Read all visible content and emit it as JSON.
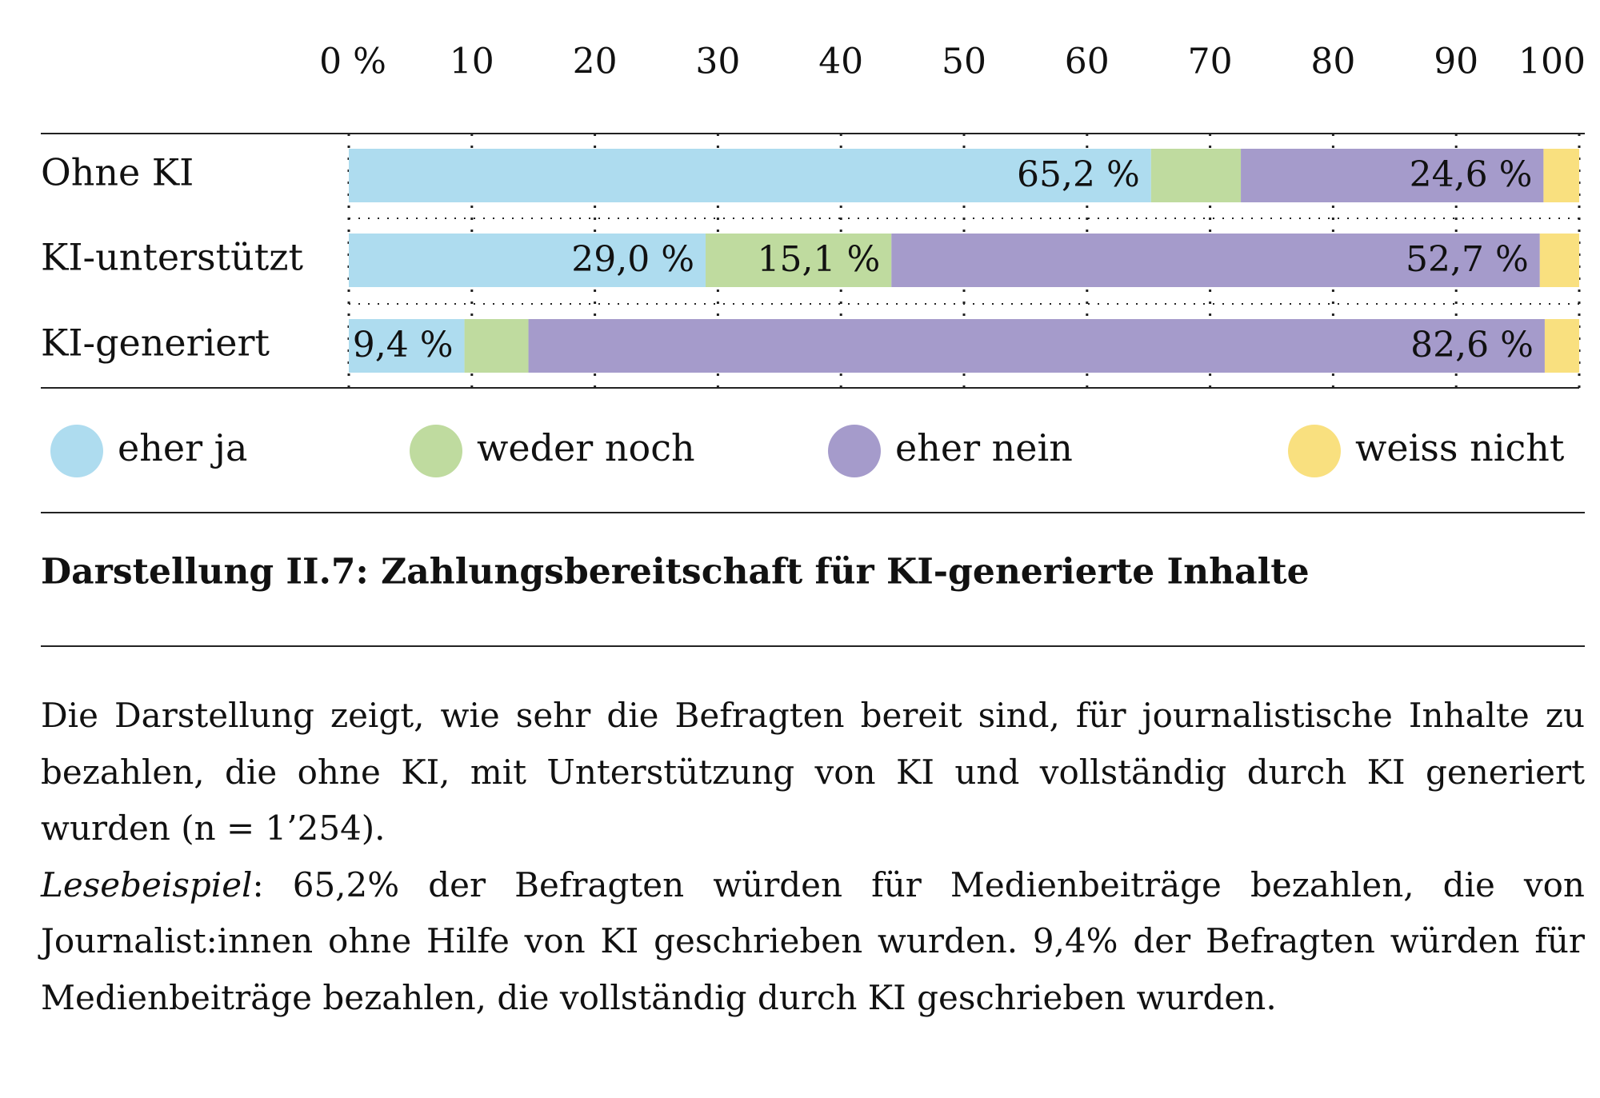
{
  "chart_data": {
    "type": "bar",
    "orientation": "horizontal",
    "stacked": true,
    "title": "Darstellung II.7: Zahlungsbereitschaft für KI-generierte Inhalte",
    "categories": [
      "Ohne KI",
      "KI-unterstützt",
      "KI-generiert"
    ],
    "series": [
      {
        "name": "eher ja",
        "color": "#aedcef",
        "values": [
          65.2,
          29.0,
          9.4
        ],
        "value_labels": [
          "65,2 %",
          "29,0 %",
          "9,4 %"
        ]
      },
      {
        "name": "weder noch",
        "color": "#bfdb9f",
        "values": [
          7.3,
          15.1,
          5.2
        ],
        "value_labels": [
          null,
          "15,1 %",
          null
        ]
      },
      {
        "name": "eher nein",
        "color": "#a59bcb",
        "values": [
          24.6,
          52.7,
          82.6
        ],
        "value_labels": [
          "24,6 %",
          "52,7 %",
          "82,6 %"
        ]
      },
      {
        "name": "weiss nicht",
        "color": "#f9e07f",
        "values": [
          2.9,
          3.2,
          2.8
        ],
        "value_labels": [
          null,
          null,
          null
        ]
      }
    ],
    "xlim": [
      0,
      100
    ],
    "xticks": [
      {
        "value": 0,
        "label": "0 %"
      },
      10,
      20,
      30,
      40,
      50,
      60,
      70,
      80,
      90,
      100
    ],
    "grid": true,
    "legend": "bottom"
  },
  "description": {
    "paragraph": "Die Darstellung zeigt, wie sehr die Befragten bereit sind, für journalistische Inhalte zu bezahlen, die ohne KI, mit Unterstützung von KI und vollständig durch KI generiert wurden (n = 1’254).",
    "example_label": "Lesebeispiel",
    "example_text": ": 65,2% der Befragten würden für Medienbeiträge bezahlen, die von Journalist:innen ohne Hilfe von KI geschrieben wurden. 9,4% der Befragten würden für Medienbeiträge bezahlen, die vollständig durch KI geschrieben wurden."
  }
}
